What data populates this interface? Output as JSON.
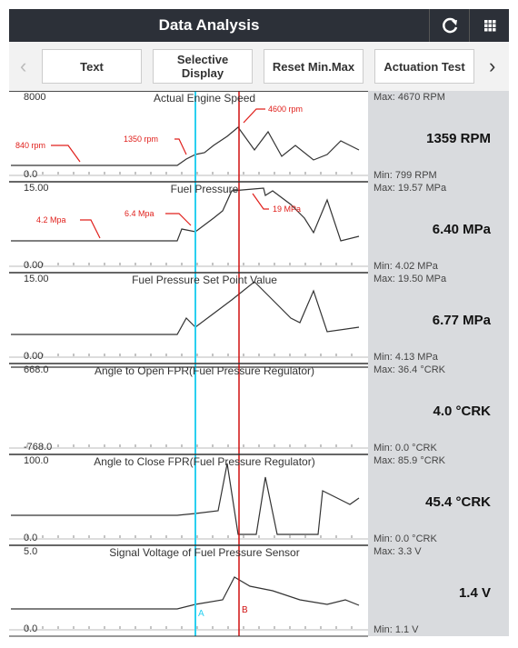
{
  "header": {
    "title": "Data Analysis"
  },
  "toolbar": {
    "buttons": [
      "Text",
      "Selective Display",
      "Reset Min.Max",
      "Actuation Test"
    ]
  },
  "panels": [
    {
      "top": "8000",
      "title": "Actual Engine Speed",
      "bottom": "0.0",
      "max": "Max: 4670 RPM",
      "value": "1359 RPM",
      "min": "Min: 799 RPM",
      "annotations": [
        "840 rpm",
        "1350 rpm",
        "4600 rpm"
      ]
    },
    {
      "top": "15.00",
      "title": "Fuel Pressure",
      "bottom": "0.00",
      "max": "Max: 19.57 MPa",
      "value": "6.40 MPa",
      "min": "Min: 4.02 MPa",
      "annotations": [
        "4.2 Mpa",
        "6.4 Mpa",
        "19 MPa"
      ]
    },
    {
      "top": "15.00",
      "title": "Fuel Pressure Set Point Value",
      "bottom": "0.00",
      "max": "Max: 19.50 MPa",
      "value": "6.77 MPa",
      "min": "Min: 4.13 MPa"
    },
    {
      "top": "668.0",
      "title": "Angle to Open FPR(Fuel Pressure Regulator)",
      "bottom": "-768.0",
      "max": "Max: 36.4 °CRK",
      "value": "4.0 °CRK",
      "min": "Min: 0.0 °CRK"
    },
    {
      "top": "100.0",
      "title": "Angle to Close FPR(Fuel Pressure Regulator)",
      "bottom": "0.0",
      "max": "Max: 85.9 °CRK",
      "value": "45.4 °CRK",
      "min": "Min: 0.0 °CRK"
    },
    {
      "top": "5.0",
      "title": "Signal Voltage of Fuel Pressure Sensor",
      "bottom": "0.0",
      "max": "Max: 3.3 V",
      "value": "1.4 V",
      "min": "Min: 1.1 V"
    }
  ],
  "cursors": [
    "A",
    "B"
  ]
}
